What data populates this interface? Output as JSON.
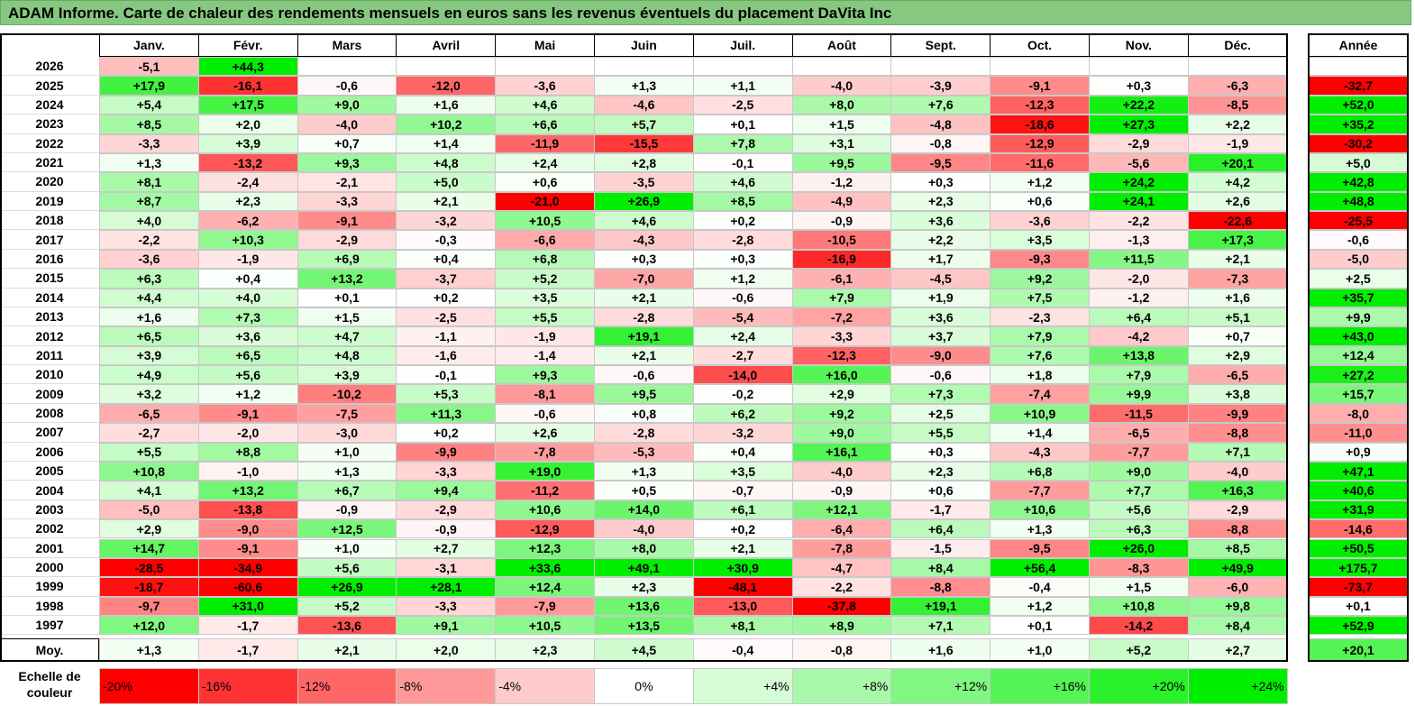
{
  "chart_data": {
    "type": "heatmap",
    "title": "ADAM Informe. Carte de chaleur des rendements mensuels en euros sans les revenus éventuels du placement DaVita Inc",
    "columns": [
      "Janv.",
      "Févr.",
      "Mars",
      "Avril",
      "Mai",
      "Juin",
      "Juil.",
      "Août",
      "Sept.",
      "Oct.",
      "Nov.",
      "Déc."
    ],
    "year_column": "Année",
    "rows": [
      {
        "year": "2026",
        "values": [
          "-5,1",
          "+44,3",
          "",
          "",
          "",
          "",
          "",
          "",
          "",
          "",
          "",
          ""
        ],
        "annual": ""
      },
      {
        "year": "2025",
        "values": [
          "+17,9",
          "-16,1",
          "-0,6",
          "-12,0",
          "-3,6",
          "+1,3",
          "+1,1",
          "-4,0",
          "-3,9",
          "-9,1",
          "+0,3",
          "-6,3"
        ],
        "annual": "-32,7"
      },
      {
        "year": "2024",
        "values": [
          "+5,4",
          "+17,5",
          "+9,0",
          "+1,6",
          "+4,6",
          "-4,6",
          "-2,5",
          "+8,0",
          "+7,6",
          "-12,3",
          "+22,2",
          "-8,5"
        ],
        "annual": "+52,0"
      },
      {
        "year": "2023",
        "values": [
          "+8,5",
          "+2,0",
          "-4,0",
          "+10,2",
          "+6,6",
          "+5,7",
          "+0,1",
          "+1,5",
          "-4,8",
          "-18,6",
          "+27,3",
          "+2,2"
        ],
        "annual": "+35,2"
      },
      {
        "year": "2022",
        "values": [
          "-3,3",
          "+3,9",
          "+0,7",
          "+1,4",
          "-11,9",
          "-15,5",
          "+7,8",
          "+3,1",
          "-0,8",
          "-12,9",
          "-2,9",
          "-1,9"
        ],
        "annual": "-30,2"
      },
      {
        "year": "2021",
        "values": [
          "+1,3",
          "-13,2",
          "+9,3",
          "+4,8",
          "+2,4",
          "+2,8",
          "-0,1",
          "+9,5",
          "-9,5",
          "-11,6",
          "-5,6",
          "+20,1"
        ],
        "annual": "+5,0"
      },
      {
        "year": "2020",
        "values": [
          "+8,1",
          "-2,4",
          "-2,1",
          "+5,0",
          "+0,6",
          "-3,5",
          "+4,6",
          "-1,2",
          "+0,3",
          "+1,2",
          "+24,2",
          "+4,2"
        ],
        "annual": "+42,8"
      },
      {
        "year": "2019",
        "values": [
          "+8,7",
          "+2,3",
          "-3,3",
          "+2,1",
          "-21,0",
          "+26,9",
          "+8,5",
          "-4,9",
          "+2,3",
          "+0,6",
          "+24,1",
          "+2,6"
        ],
        "annual": "+48,8"
      },
      {
        "year": "2018",
        "values": [
          "+4,0",
          "-6,2",
          "-9,1",
          "-3,2",
          "+10,5",
          "+4,6",
          "+0,2",
          "-0,9",
          "+3,6",
          "-3,6",
          "-2,2",
          "-22,6"
        ],
        "annual": "-25,5"
      },
      {
        "year": "2017",
        "values": [
          "-2,2",
          "+10,3",
          "-2,9",
          "-0,3",
          "-6,6",
          "-4,3",
          "-2,8",
          "-10,5",
          "+2,2",
          "+3,5",
          "-1,3",
          "+17,3"
        ],
        "annual": "-0,6"
      },
      {
        "year": "2016",
        "values": [
          "-3,6",
          "-1,9",
          "+6,9",
          "+0,4",
          "+6,8",
          "+0,3",
          "+0,3",
          "-16,9",
          "+1,7",
          "-9,3",
          "+11,5",
          "+2,1"
        ],
        "annual": "-5,0"
      },
      {
        "year": "2015",
        "values": [
          "+6,3",
          "+0,4",
          "+13,2",
          "-3,7",
          "+5,2",
          "-7,0",
          "+1,2",
          "-6,1",
          "-4,5",
          "+9,2",
          "-2,0",
          "-7,3"
        ],
        "annual": "+2,5"
      },
      {
        "year": "2014",
        "values": [
          "+4,4",
          "+4,0",
          "+0,1",
          "+0,2",
          "+3,5",
          "+2,1",
          "-0,6",
          "+7,9",
          "+1,9",
          "+7,5",
          "-1,2",
          "+1,6"
        ],
        "annual": "+35,7"
      },
      {
        "year": "2013",
        "values": [
          "+1,6",
          "+7,3",
          "+1,5",
          "-2,5",
          "+5,5",
          "-2,8",
          "-5,4",
          "-7,2",
          "+3,6",
          "-2,3",
          "+6,4",
          "+5,1"
        ],
        "annual": "+9,9"
      },
      {
        "year": "2012",
        "values": [
          "+6,5",
          "+3,6",
          "+4,7",
          "-1,1",
          "-1,9",
          "+19,1",
          "+2,4",
          "-3,3",
          "+3,7",
          "+7,9",
          "-4,2",
          "+0,7"
        ],
        "annual": "+43,0"
      },
      {
        "year": "2011",
        "values": [
          "+3,9",
          "+6,5",
          "+4,8",
          "-1,6",
          "-1,4",
          "+2,1",
          "-2,7",
          "-12,3",
          "-9,0",
          "+7,6",
          "+13,8",
          "+2,9"
        ],
        "annual": "+12,4"
      },
      {
        "year": "2010",
        "values": [
          "+4,9",
          "+5,6",
          "+3,9",
          "-0,1",
          "+9,3",
          "-0,6",
          "-14,0",
          "+16,0",
          "-0,6",
          "+1,8",
          "+7,9",
          "-6,5"
        ],
        "annual": "+27,2"
      },
      {
        "year": "2009",
        "values": [
          "+3,2",
          "+1,2",
          "-10,2",
          "+5,3",
          "-8,1",
          "+9,5",
          "-0,2",
          "+2,9",
          "+7,3",
          "-7,4",
          "+9,9",
          "+3,8"
        ],
        "annual": "+15,7"
      },
      {
        "year": "2008",
        "values": [
          "-6,5",
          "-9,1",
          "-7,5",
          "+11,3",
          "-0,6",
          "+0,8",
          "+6,2",
          "+9,2",
          "+2,5",
          "+10,9",
          "-11,5",
          "-9,9"
        ],
        "annual": "-8,0"
      },
      {
        "year": "2007",
        "values": [
          "-2,7",
          "-2,0",
          "-3,0",
          "+0,2",
          "+2,6",
          "-2,8",
          "-3,2",
          "+9,0",
          "+5,5",
          "+1,4",
          "-6,5",
          "-8,8"
        ],
        "annual": "-11,0"
      },
      {
        "year": "2006",
        "values": [
          "+5,5",
          "+8,8",
          "+1,0",
          "-9,9",
          "-7,8",
          "-5,3",
          "+0,4",
          "+16,1",
          "+0,3",
          "-4,3",
          "-7,7",
          "+7,1"
        ],
        "annual": "+0,9"
      },
      {
        "year": "2005",
        "values": [
          "+10,8",
          "-1,0",
          "+1,3",
          "-3,3",
          "+19,0",
          "+1,3",
          "+3,5",
          "-4,0",
          "+2,3",
          "+6,8",
          "+9,0",
          "-4,0"
        ],
        "annual": "+47,1"
      },
      {
        "year": "2004",
        "values": [
          "+4,1",
          "+13,2",
          "+6,7",
          "+9,4",
          "-11,2",
          "+0,5",
          "-0,7",
          "-0,9",
          "+0,6",
          "-7,7",
          "+7,7",
          "+16,3"
        ],
        "annual": "+40,6"
      },
      {
        "year": "2003",
        "values": [
          "-5,0",
          "-13,8",
          "-0,9",
          "-2,9",
          "+10,6",
          "+14,0",
          "+6,1",
          "+12,1",
          "-1,7",
          "+10,6",
          "+5,6",
          "-2,9"
        ],
        "annual": "+31,9"
      },
      {
        "year": "2002",
        "values": [
          "+2,9",
          "-9,0",
          "+12,5",
          "-0,9",
          "-12,9",
          "-4,0",
          "+0,2",
          "-6,4",
          "+6,4",
          "+1,3",
          "+6,3",
          "-8,8"
        ],
        "annual": "-14,6"
      },
      {
        "year": "2001",
        "values": [
          "+14,7",
          "-9,1",
          "+1,0",
          "+2,7",
          "+12,3",
          "+8,0",
          "+2,1",
          "-7,8",
          "-1,5",
          "-9,5",
          "+26,0",
          "+8,5"
        ],
        "annual": "+50,5"
      },
      {
        "year": "2000",
        "values": [
          "-28,5",
          "-34,9",
          "+5,6",
          "-3,1",
          "+33,6",
          "+49,1",
          "+30,9",
          "-4,7",
          "+8,4",
          "+56,4",
          "-8,3",
          "+49,9"
        ],
        "annual": "+175,7"
      },
      {
        "year": "1999",
        "values": [
          "-18,7",
          "-60,6",
          "+26,9",
          "+28,1",
          "+12,4",
          "+2,3",
          "-48,1",
          "-2,2",
          "-8,8",
          "-0,4",
          "+1,5",
          "-6,0"
        ],
        "annual": "-73,7"
      },
      {
        "year": "1998",
        "values": [
          "-9,7",
          "+31,0",
          "+5,2",
          "-3,3",
          "-7,9",
          "+13,6",
          "-13,0",
          "-37,8",
          "+19,1",
          "+1,2",
          "+10,8",
          "+9,8"
        ],
        "annual": "+0,1"
      },
      {
        "year": "1997",
        "values": [
          "+12,0",
          "-1,7",
          "-13,6",
          "+9,1",
          "+10,5",
          "+13,5",
          "+8,1",
          "+8,9",
          "+7,1",
          "+0,1",
          "-14,2",
          "+8,4"
        ],
        "annual": "+52,9"
      }
    ],
    "average": {
      "label": "Moy.",
      "values": [
        "+1,3",
        "-1,7",
        "+2,1",
        "+2,0",
        "+2,3",
        "+4,5",
        "-0,4",
        "-0,8",
        "+1,6",
        "+1,0",
        "+5,2",
        "+2,7"
      ],
      "annual": "+20,1"
    },
    "scale": {
      "title_line1": "Echelle de",
      "title_line2": "couleur",
      "stops": [
        "-20%",
        "-16%",
        "-12%",
        "-8%",
        "-4%",
        "0%",
        "+4%",
        "+8%",
        "+12%",
        "+16%",
        "+20%",
        "+24%"
      ],
      "stop_values": [
        -20,
        -16,
        -12,
        -8,
        -4,
        0,
        4,
        8,
        12,
        16,
        20,
        24
      ]
    },
    "colors": {
      "neg": "#ff0000",
      "pos": "#00ee00",
      "neutral": "#ffffff",
      "title_bg": "#86c880"
    }
  }
}
